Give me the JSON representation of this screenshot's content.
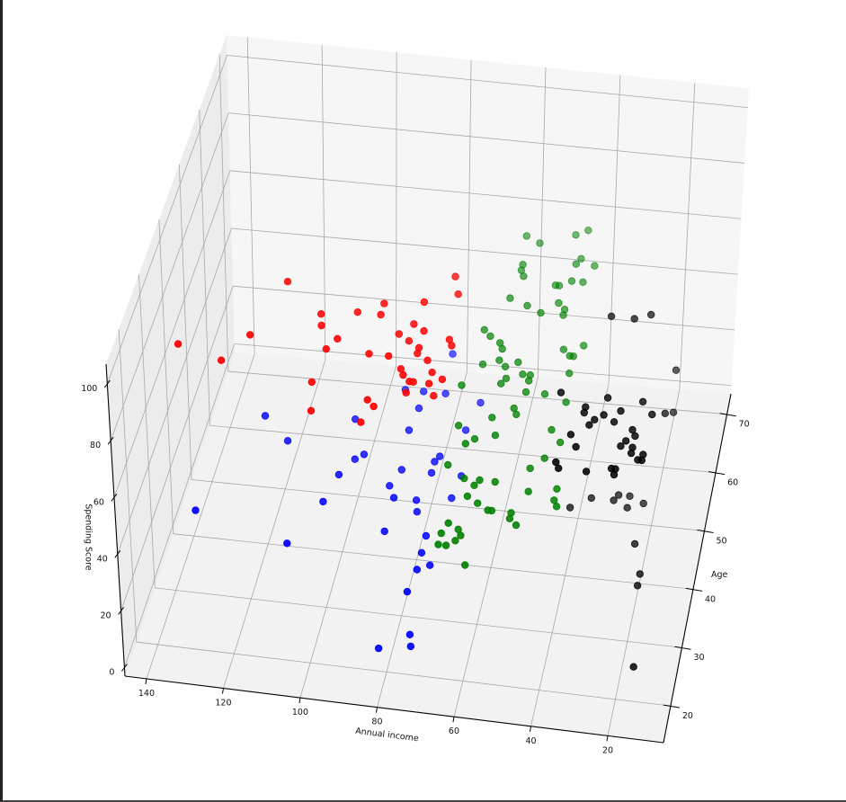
{
  "chart_data": {
    "type": "scatter",
    "projection": "3d",
    "title": "",
    "axes": {
      "x": {
        "label": "Annual income",
        "lim": [
          5.5,
          145.6
        ],
        "ticks": [
          20,
          40,
          60,
          80,
          100,
          120,
          140
        ],
        "tick_labels": [
          "20",
          "40",
          "60",
          "80",
          "100",
          "120",
          "140"
        ]
      },
      "y": {
        "label": "Age",
        "lim": [
          13.7,
          73.5
        ],
        "ticks": [
          20,
          30,
          40,
          50,
          60,
          70
        ],
        "tick_labels": [
          "20",
          "30",
          "40",
          "50",
          "60",
          "70"
        ]
      },
      "z": {
        "label": "Spending Score",
        "lim": [
          -3,
          107
        ],
        "ticks": [
          0,
          20,
          40,
          60,
          80,
          100
        ],
        "tick_labels": [
          "0",
          "20",
          "40",
          "60",
          "80",
          "100"
        ]
      }
    },
    "grid": true,
    "depthshade": true,
    "point_format": [
      "Annual income",
      "Age",
      "Spending Score"
    ],
    "series": [
      {
        "color": "#ff0000",
        "points": [
          [
            115,
            44,
            82
          ],
          [
            104,
            39,
            82
          ],
          [
            103,
            37,
            82
          ],
          [
            95,
            40,
            82
          ],
          [
            120,
            34,
            82
          ],
          [
            137,
            31,
            82
          ],
          [
            98,
            35,
            82
          ],
          [
            100,
            33,
            82
          ],
          [
            125,
            29,
            82
          ],
          [
            101,
            27,
            82
          ],
          [
            99,
            22,
            82
          ],
          [
            73,
            48,
            82
          ],
          [
            79,
            43,
            82
          ],
          [
            71,
            45,
            82
          ],
          [
            89,
            42,
            82
          ],
          [
            89,
            40,
            82
          ],
          [
            80,
            39,
            82
          ],
          [
            77,
            38,
            82
          ],
          [
            83,
            37,
            82
          ],
          [
            80,
            36,
            82
          ],
          [
            77,
            35,
            82
          ],
          [
            70,
            37,
            82
          ],
          [
            77,
            34,
            82
          ],
          [
            69,
            36,
            82
          ],
          [
            89,
            33,
            82
          ],
          [
            84,
            33,
            82
          ],
          [
            74,
            33,
            82
          ],
          [
            80,
            31,
            82
          ],
          [
            79,
            30,
            82
          ],
          [
            72,
            31,
            82
          ],
          [
            77,
            29,
            82
          ],
          [
            76,
            29,
            82
          ],
          [
            69,
            30,
            82
          ],
          [
            72,
            29,
            82
          ],
          [
            77,
            27,
            82
          ],
          [
            70,
            27,
            82
          ],
          [
            86,
            25,
            82
          ],
          [
            84,
            24,
            82
          ],
          [
            86,
            21,
            82
          ]
        ]
      },
      {
        "color": "#0000ff",
        "points": [
          [
            126,
            52,
            18
          ],
          [
            102,
            53,
            18
          ],
          [
            118,
            48,
            18
          ],
          [
            99,
            46,
            18
          ],
          [
            97,
            47,
            18
          ],
          [
            102,
            43,
            18
          ],
          [
            104,
            38,
            18
          ],
          [
            136,
            34,
            18
          ],
          [
            110,
            30,
            18
          ],
          [
            81,
            66,
            18
          ],
          [
            91,
            59,
            18
          ],
          [
            86,
            59,
            18
          ],
          [
            80,
            59,
            18
          ],
          [
            86,
            56,
            18
          ],
          [
            87,
            52,
            18
          ],
          [
            72,
            53,
            18
          ],
          [
            70,
            58,
            18
          ],
          [
            77,
            48,
            18
          ],
          [
            78,
            47,
            18
          ],
          [
            86,
            45,
            18
          ],
          [
            78,
            45,
            18
          ],
          [
            70,
            45,
            18
          ],
          [
            88,
            42,
            18
          ],
          [
            86,
            40,
            18
          ],
          [
            80,
            40,
            18
          ],
          [
            79,
            38,
            18
          ],
          [
            71,
            41,
            18
          ],
          [
            86,
            34,
            18
          ],
          [
            75,
            34,
            18
          ],
          [
            75,
            31,
            18
          ],
          [
            72,
            29,
            18
          ],
          [
            75,
            28,
            18
          ],
          [
            76,
            24,
            18
          ],
          [
            75,
            23,
            5
          ],
          [
            74,
            21,
            5
          ],
          [
            82,
            20,
            5
          ]
        ]
      },
      {
        "color": "#008000",
        "points": [
          [
            62,
            68,
            58
          ],
          [
            58,
            67,
            58
          ],
          [
            49,
            69,
            58
          ],
          [
            46,
            70,
            58
          ],
          [
            61,
            63,
            58
          ],
          [
            61,
            62,
            58
          ],
          [
            60,
            61,
            58
          ],
          [
            46,
            65,
            58
          ],
          [
            47,
            64,
            58
          ],
          [
            42,
            64,
            58
          ],
          [
            51,
            60,
            58
          ],
          [
            50,
            60,
            58
          ],
          [
            47,
            61,
            58
          ],
          [
            44,
            61,
            58
          ],
          [
            62,
            57,
            58
          ],
          [
            57,
            56,
            58
          ],
          [
            49,
            57,
            58
          ],
          [
            47,
            56,
            58
          ],
          [
            47,
            55,
            58
          ],
          [
            53,
            55,
            58
          ],
          [
            68,
            55,
            50
          ],
          [
            66,
            54,
            50
          ],
          [
            63,
            53,
            50
          ],
          [
            62,
            52,
            50
          ],
          [
            66,
            49,
            50
          ],
          [
            62,
            50,
            50
          ],
          [
            60,
            49,
            50
          ],
          [
            57,
            50,
            50
          ],
          [
            70,
            45,
            50
          ],
          [
            59,
            47,
            50
          ],
          [
            60,
            46,
            50
          ],
          [
            55,
            48,
            50
          ],
          [
            53,
            48,
            50
          ],
          [
            53,
            47,
            50
          ],
          [
            53,
            45,
            50
          ],
          [
            55,
            42,
            50
          ],
          [
            60,
            40,
            50
          ],
          [
            54,
            41,
            50
          ],
          [
            68,
            38,
            50
          ],
          [
            41,
            54,
            50
          ],
          [
            46,
            53,
            50
          ],
          [
            44,
            52,
            50
          ],
          [
            43,
            52,
            50
          ],
          [
            43,
            49,
            50
          ],
          [
            58,
            37,
            50
          ],
          [
            63,
            36,
            50
          ],
          [
            65,
            35,
            50
          ],
          [
            68,
            31,
            50
          ],
          [
            63,
            29,
            50
          ],
          [
            59,
            29,
            50
          ],
          [
            60,
            28,
            50
          ],
          [
            55,
            29,
            50
          ],
          [
            47,
            32,
            50
          ],
          [
            46,
            28,
            50
          ],
          [
            61,
            26,
            50
          ],
          [
            58,
            25,
            50
          ],
          [
            55,
            24,
            50
          ],
          [
            54,
            24,
            50
          ],
          [
            49,
            24,
            50
          ],
          [
            49,
            23,
            50
          ],
          [
            47,
            22,
            50
          ],
          [
            64,
            21,
            50
          ],
          [
            48,
            45,
            50
          ],
          [
            42,
            44,
            50
          ],
          [
            44,
            39,
            50
          ],
          [
            41,
            37,
            50
          ],
          [
            44,
            34,
            50
          ],
          [
            39,
            29,
            50
          ],
          [
            39,
            27,
            50
          ],
          [
            38,
            26,
            50
          ],
          [
            67,
            24,
            40
          ],
          [
            63,
            25,
            40
          ],
          [
            62,
            24,
            40
          ],
          [
            67,
            22,
            40
          ],
          [
            65,
            22,
            40
          ],
          [
            63,
            23,
            40
          ],
          [
            59,
            19,
            40
          ]
        ]
      },
      {
        "color": "#000000",
        "points": [
          [
            31,
            45,
            80
          ],
          [
            25,
            45,
            80
          ],
          [
            21,
            46,
            80
          ],
          [
            39,
            31,
            80
          ],
          [
            27,
            31,
            80
          ],
          [
            18,
            31,
            80
          ],
          [
            32,
            29,
            80
          ],
          [
            32,
            28,
            80
          ],
          [
            27,
            28,
            80
          ],
          [
            23,
            29,
            80
          ],
          [
            15,
            29,
            80
          ],
          [
            29,
            27,
            80
          ],
          [
            30,
            26,
            80
          ],
          [
            24,
            27,
            80
          ],
          [
            34,
            24,
            80
          ],
          [
            19,
            26,
            80
          ],
          [
            18,
            25,
            80
          ],
          [
            32,
            22,
            80
          ],
          [
            20,
            24,
            80
          ],
          [
            21,
            23,
            80
          ],
          [
            18,
            23,
            80
          ],
          [
            18,
            22,
            80
          ],
          [
            15,
            22,
            80
          ],
          [
            16,
            21,
            80
          ],
          [
            15,
            21,
            80
          ],
          [
            35,
            18,
            80
          ],
          [
            36,
            19,
            80
          ],
          [
            28,
            18,
            80
          ],
          [
            22,
            19,
            80
          ],
          [
            21,
            19,
            80
          ],
          [
            21,
            18,
            80
          ],
          [
            15,
            41,
            56
          ],
          [
            15,
            49,
            40
          ],
          [
            15,
            50,
            53
          ],
          [
            35,
            45,
            15
          ],
          [
            29,
            45,
            15
          ],
          [
            28,
            46,
            15
          ],
          [
            25,
            46,
            15
          ],
          [
            25,
            44,
            15
          ],
          [
            21,
            45,
            15
          ],
          [
            40,
            43,
            15
          ],
          [
            21,
            38,
            15
          ],
          [
            18,
            33,
            15
          ],
          [
            18,
            31,
            15
          ],
          [
            16,
            22,
            5
          ]
        ]
      }
    ]
  }
}
